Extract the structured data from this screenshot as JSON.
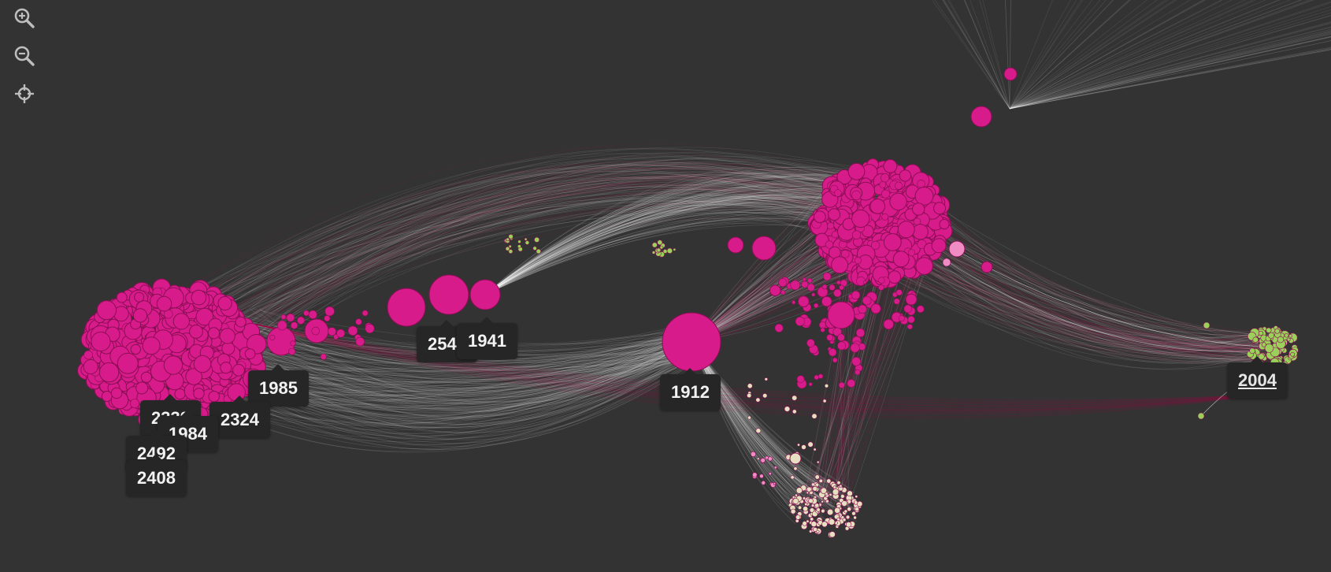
{
  "toolbar": {
    "zoom_in_icon": "magnifier-plus-icon",
    "zoom_out_icon": "magnifier-minus-icon",
    "center_icon": "crosshair-center-icon"
  },
  "colors": {
    "background": "#333333",
    "node_magenta": "#d81b8a",
    "node_magenta_light": "#f08cc4",
    "node_green": "#9bd15a",
    "node_cream": "#e6e0c0",
    "edge": "#ffffff",
    "edge_magenta": "#c2185b",
    "tooltip_bg": "#262626",
    "tooltip_text": "#f2f2f2"
  },
  "labels": {
    "l1985": "1985",
    "l2339": "2339",
    "l2324": "2324",
    "l1984": "1984",
    "l2492": "2492",
    "l2408": "2408",
    "l2545": "2545",
    "l1941": "1941",
    "l1912": "1912",
    "l2004": "2004"
  }
}
